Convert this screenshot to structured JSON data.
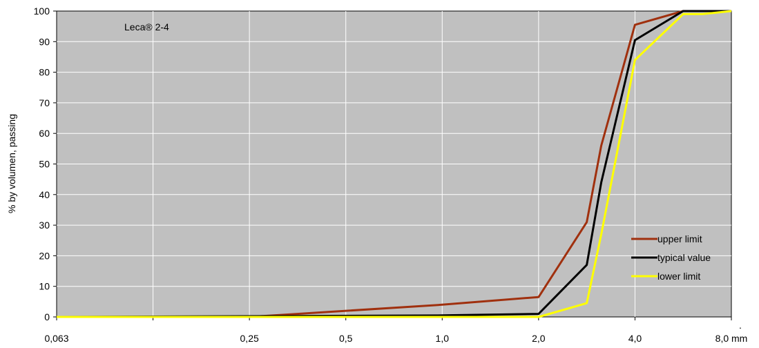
{
  "chart_data": {
    "type": "line",
    "annotation": "Leca® 2-4",
    "ylabel": "% by volumen, passing",
    "xlabel": "",
    "ylim": [
      0,
      100
    ],
    "yticks": [
      "0",
      "10",
      "20",
      "30",
      "40",
      "50",
      "60",
      "70",
      "80",
      "90",
      "100"
    ],
    "x_categories": [
      {
        "pos": 0,
        "label": "0,063"
      },
      {
        "pos": 1,
        "label": ""
      },
      {
        "pos": 2,
        "label": "0,25"
      },
      {
        "pos": 3,
        "label": "0,5"
      },
      {
        "pos": 4,
        "label": "1,0"
      },
      {
        "pos": 5,
        "label": "2,0"
      },
      {
        "pos": 6,
        "label": "4,0"
      },
      {
        "pos": 7,
        "label": "8,0 mm"
      }
    ],
    "x_range": [
      0,
      7
    ],
    "grid": true,
    "legend_position": "lower-right",
    "series": [
      {
        "name": "upper limit",
        "color": "#a0300e",
        "points": [
          [
            0,
            0
          ],
          [
            2,
            0
          ],
          [
            4,
            4
          ],
          [
            5,
            6.5
          ],
          [
            5.5,
            31
          ],
          [
            5.65,
            56
          ],
          [
            6,
            95.5
          ],
          [
            6.5,
            100
          ],
          [
            7,
            100
          ]
        ]
      },
      {
        "name": "typical value",
        "color": "#000000",
        "points": [
          [
            0,
            0
          ],
          [
            4,
            0.5
          ],
          [
            5,
            1
          ],
          [
            5.5,
            17
          ],
          [
            5.65,
            44
          ],
          [
            6,
            90.5
          ],
          [
            6.5,
            100
          ],
          [
            7,
            100
          ]
        ]
      },
      {
        "name": "lower limit",
        "color": "#ffff00",
        "points": [
          [
            0,
            0
          ],
          [
            5,
            0
          ],
          [
            5.5,
            4.5
          ],
          [
            5.65,
            27
          ],
          [
            6,
            84
          ],
          [
            6.5,
            99
          ],
          [
            6.7,
            99
          ],
          [
            7,
            100
          ]
        ]
      }
    ],
    "colors": {
      "plot_bg": "#c0c0c0",
      "grid": "#ffffff",
      "axis": "#000000"
    }
  }
}
